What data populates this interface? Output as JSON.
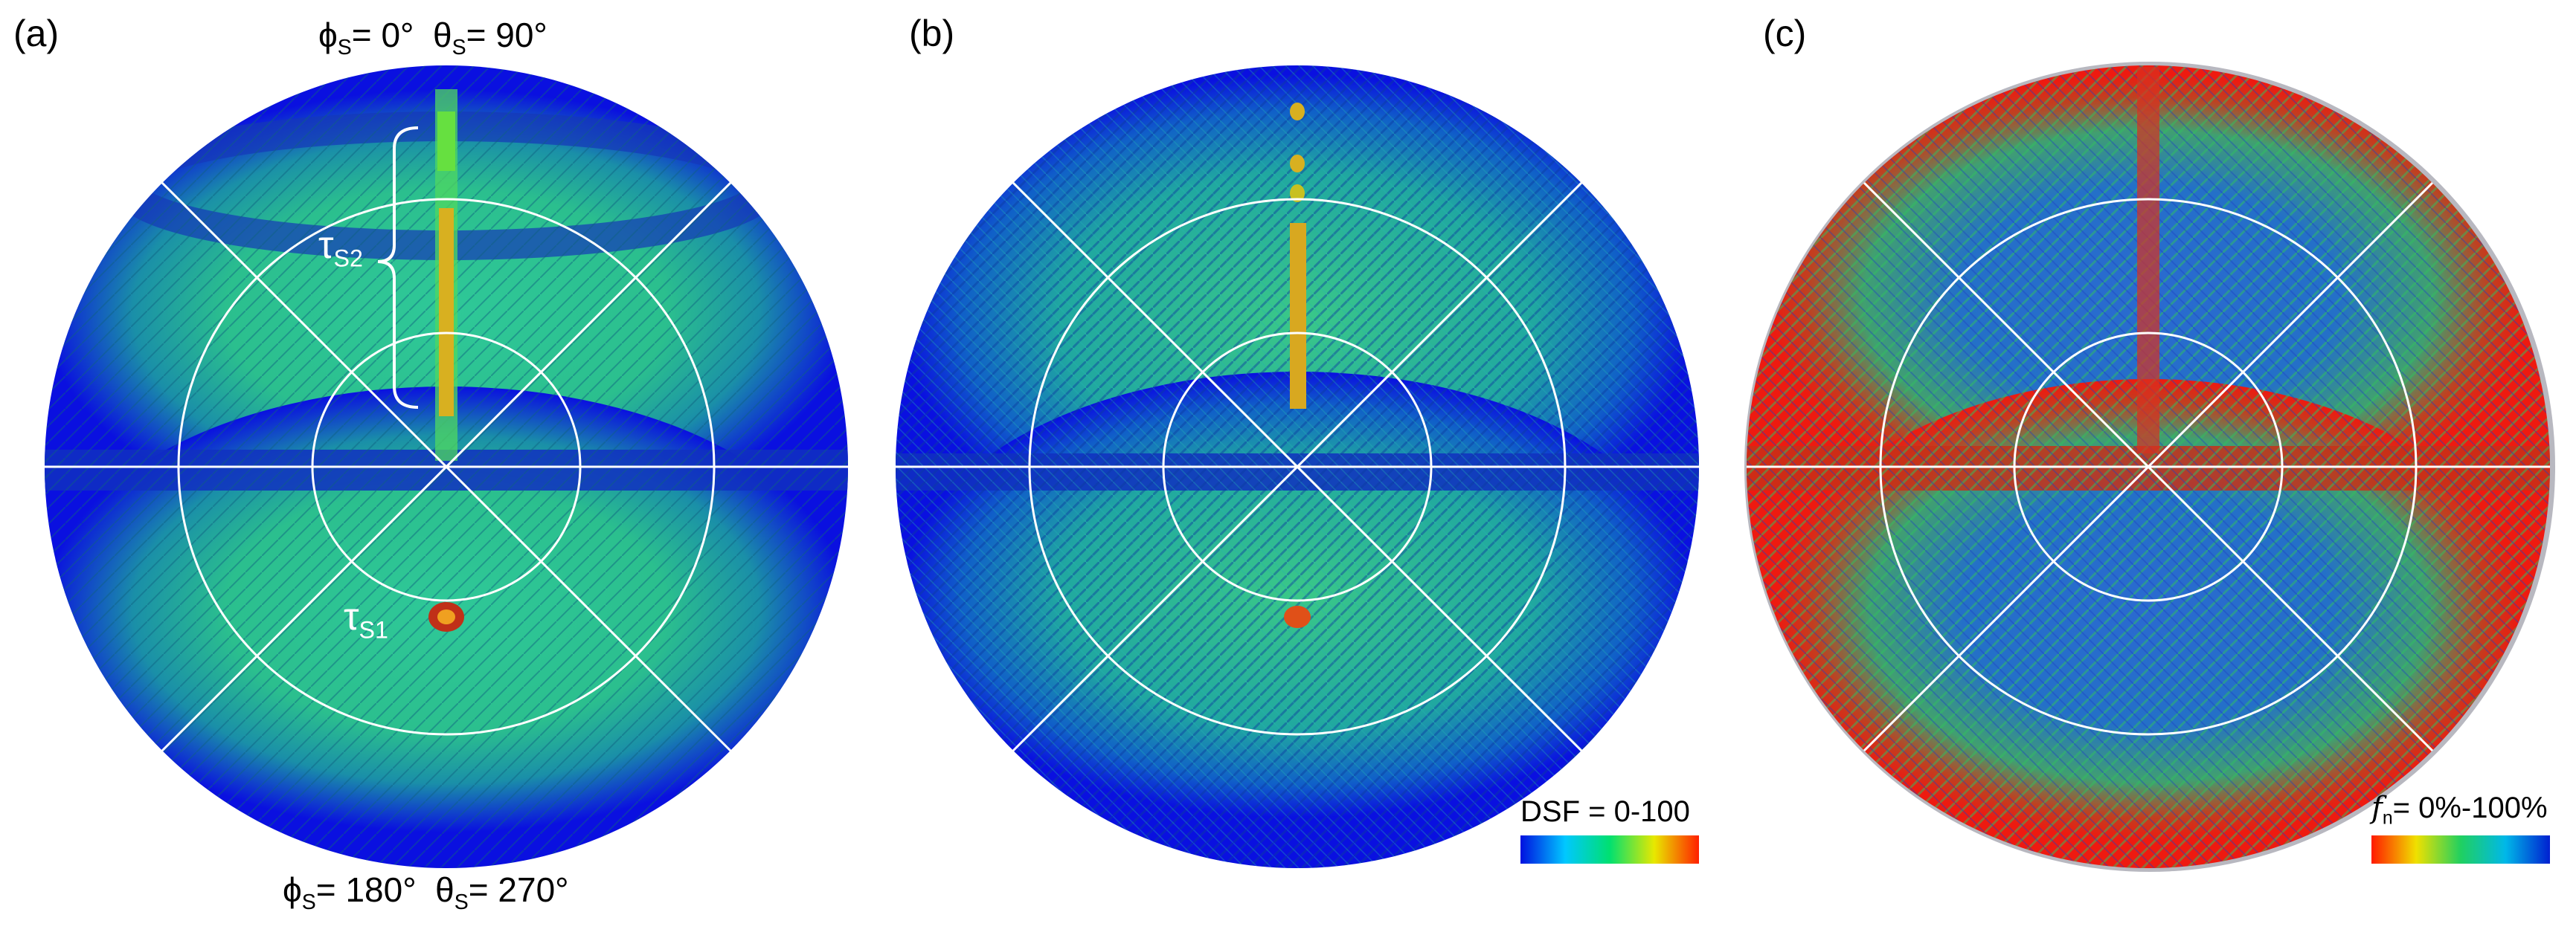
{
  "panels": [
    {
      "label": "(a)",
      "top_annotation": {
        "phi_symbol": "ϕ",
        "phi_sub": "S",
        "phi_value": "= 0°",
        "theta_symbol": "θ",
        "theta_sub": "S",
        "theta_value": "= 90°"
      },
      "bottom_annotation": {
        "phi_symbol": "ϕ",
        "phi_sub": "S",
        "phi_value": "= 180°",
        "theta_symbol": "θ",
        "theta_sub": "S",
        "theta_value": "= 270°"
      },
      "tau_s2": {
        "symbol": "τ",
        "sub": "S2"
      },
      "tau_s1": {
        "symbol": "τ",
        "sub": "S1"
      }
    },
    {
      "label": "(b)",
      "colorbar": {
        "label": "DSF = 0-100",
        "colors": [
          "#0010e0",
          "#00c8ff",
          "#00e070",
          "#e8e800",
          "#ff2000"
        ]
      }
    },
    {
      "label": "(c)",
      "colorbar": {
        "symbol": "f",
        "sub": "n",
        "label": "= 0%-100%",
        "colors": [
          "#ff1a00",
          "#f0e000",
          "#20d060",
          "#00b8e8",
          "#0020d0"
        ]
      }
    }
  ],
  "colors": {
    "background_blue": "#0a10e0",
    "teal": "#1fa6a0",
    "green": "#3cd67a",
    "red": "#ee1a10",
    "highlight": "#e8c020",
    "overlay_lines": "#ffffff"
  }
}
